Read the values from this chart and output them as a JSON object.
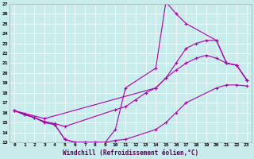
{
  "xlabel": "Windchill (Refroidissement éolien,°C)",
  "bg_color": "#c8ecec",
  "line_color": "#aa00aa",
  "marker": "+",
  "xlim": [
    -0.5,
    23.5
  ],
  "ylim": [
    13,
    27
  ],
  "xticks": [
    0,
    1,
    2,
    3,
    4,
    5,
    6,
    7,
    8,
    9,
    10,
    11,
    12,
    13,
    14,
    15,
    16,
    17,
    18,
    19,
    20,
    21,
    22,
    23
  ],
  "yticks": [
    13,
    14,
    15,
    16,
    17,
    18,
    19,
    20,
    21,
    22,
    23,
    24,
    25,
    26,
    27
  ],
  "curves": [
    {
      "x": [
        0,
        1,
        2,
        3,
        4,
        5,
        6,
        7,
        8,
        9,
        10,
        11,
        14,
        15,
        16,
        17,
        20,
        21,
        22,
        23
      ],
      "y": [
        16.2,
        15.9,
        15.5,
        15.0,
        14.8,
        13.3,
        13.0,
        13.0,
        13.0,
        13.0,
        14.3,
        18.5,
        20.5,
        27.2,
        26.0,
        25.0,
        23.3,
        21.0,
        20.8,
        19.3
      ]
    },
    {
      "x": [
        0,
        1,
        2,
        3,
        4,
        5,
        6,
        7,
        8,
        9,
        10,
        11,
        14,
        15,
        16,
        17,
        20,
        21,
        22,
        23
      ],
      "y": [
        16.2,
        15.8,
        15.5,
        15.0,
        14.8,
        13.3,
        13.0,
        13.0,
        13.0,
        13.0,
        13.2,
        13.3,
        14.3,
        15.0,
        16.0,
        17.0,
        18.5,
        18.8,
        18.8,
        18.7
      ]
    },
    {
      "x": [
        0,
        1,
        2,
        3,
        4,
        5,
        10,
        11,
        12,
        13,
        14,
        15,
        16,
        17,
        18,
        19,
        20,
        21,
        22,
        23
      ],
      "y": [
        16.2,
        15.8,
        15.5,
        15.1,
        14.9,
        14.6,
        16.3,
        16.6,
        17.3,
        18.0,
        18.5,
        19.5,
        20.3,
        21.0,
        21.5,
        21.8,
        21.5,
        21.0,
        20.8,
        19.3
      ]
    },
    {
      "x": [
        0,
        3,
        14,
        15,
        16,
        17,
        18,
        19,
        20,
        21,
        22,
        23
      ],
      "y": [
        16.2,
        15.4,
        18.5,
        19.5,
        21.0,
        22.5,
        23.0,
        23.3,
        23.3,
        21.0,
        20.8,
        19.3
      ]
    }
  ]
}
